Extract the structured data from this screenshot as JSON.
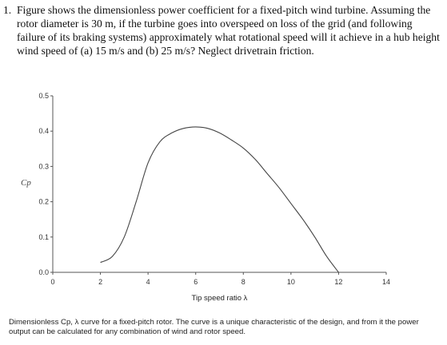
{
  "question": {
    "number": "1.",
    "text": "Figure shows the dimensionless power coefficient for a fixed-pitch wind turbine. Assuming the rotor diameter is 30 m, if the turbine goes into overspeed on loss of the grid (and following failure of its braking systems) approximately what rotational speed will it achieve in a hub height wind speed of (a) 15 m/s and (b) 25 m/s? Neglect drivetrain friction."
  },
  "chart_data": {
    "type": "line",
    "title": "",
    "xlabel": "Tip speed ratio λ",
    "ylabel": "Cp",
    "xlim": [
      0,
      14
    ],
    "ylim": [
      0,
      0.5
    ],
    "xticks": [
      "0",
      "2",
      "4",
      "6",
      "8",
      "10",
      "12",
      "14"
    ],
    "yticks": [
      "0.0",
      "0.1",
      "0.2",
      "0.3",
      "0.4",
      "0.5"
    ],
    "grid": false,
    "series": [
      {
        "x": [
          2,
          2.5,
          3,
          3.5,
          4,
          4.5,
          5,
          5.5,
          6,
          6.5,
          7,
          7.5,
          8,
          8.5,
          9,
          9.5,
          10,
          10.5,
          11,
          11.5,
          12
        ],
        "y": [
          0.028,
          0.045,
          0.1,
          0.2,
          0.31,
          0.37,
          0.395,
          0.408,
          0.412,
          0.408,
          0.395,
          0.375,
          0.352,
          0.32,
          0.28,
          0.24,
          0.195,
          0.15,
          0.1,
          0.045,
          0.0
        ]
      }
    ]
  },
  "caption": {
    "text": "Dimensionless Cp, λ curve for a fixed-pitch rotor. The curve is a unique characteristic of the design, and from it the power output can be calculated for any combination of wind and rotor speed."
  }
}
